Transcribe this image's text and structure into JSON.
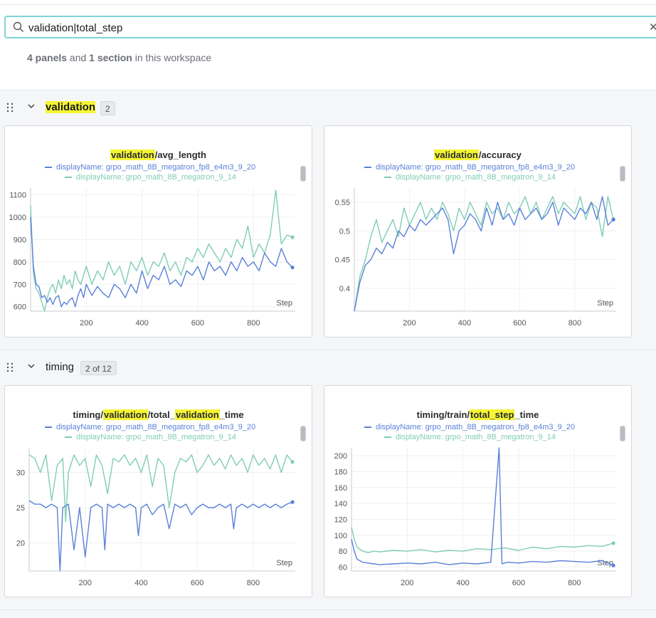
{
  "search": {
    "value": "validation|total_step",
    "clear_glyph": "✕",
    "icon": "search-icon"
  },
  "summary": {
    "panels_count": "4 panels",
    "and": " and ",
    "sections_count": "1 section",
    "suffix": " in this workspace"
  },
  "sections": [
    {
      "title_hl": "validation",
      "badge": "2"
    },
    {
      "title": "timing",
      "badge": "2 of 12"
    }
  ],
  "legend": {
    "series_a": "displayName: grpo_math_8B_megatron_fp8_e4m3_9_20",
    "series_b": "displayName: grpo_math_8B_megatron_9_14",
    "color_a": "#5a80d8",
    "color_b": "#7fcdb5"
  },
  "panels": [
    {
      "title_parts": [
        {
          "hl": true,
          "t": "validation"
        },
        {
          "hl": false,
          "t": "/avg_length"
        }
      ]
    },
    {
      "title_parts": [
        {
          "hl": true,
          "t": "validation"
        },
        {
          "hl": false,
          "t": "/accuracy"
        }
      ]
    },
    {
      "title_parts": [
        {
          "hl": false,
          "t": "timing/"
        },
        {
          "hl": true,
          "t": "validation"
        },
        {
          "hl": false,
          "t": "/total_"
        },
        {
          "hl": true,
          "t": "validation"
        },
        {
          "hl": false,
          "t": "_time"
        }
      ]
    },
    {
      "title_parts": [
        {
          "hl": false,
          "t": "timing/train/"
        },
        {
          "hl": true,
          "t": "total_step"
        },
        {
          "hl": false,
          "t": "_time"
        }
      ]
    }
  ],
  "chart_data": [
    {
      "type": "line",
      "title": "validation/avg_length",
      "xlabel": "Step",
      "xlim": [
        0,
        950
      ],
      "ylim": [
        580,
        1130
      ],
      "xticks": [
        200,
        400,
        600,
        800
      ],
      "yticks": [
        600,
        700,
        800,
        900,
        1000,
        1100
      ],
      "series": [
        {
          "name": "displayName: grpo_math_8B_megatron_fp8_e4m3_9_20",
          "x": [
            0,
            10,
            20,
            30,
            40,
            50,
            60,
            70,
            80,
            90,
            100,
            110,
            120,
            130,
            140,
            150,
            160,
            170,
            180,
            190,
            200,
            220,
            240,
            260,
            280,
            300,
            320,
            340,
            360,
            380,
            400,
            420,
            440,
            460,
            480,
            500,
            520,
            540,
            560,
            580,
            600,
            620,
            640,
            660,
            680,
            700,
            720,
            740,
            760,
            780,
            800,
            820,
            840,
            860,
            880,
            900,
            920,
            940
          ],
          "values": [
            1000,
            780,
            700,
            690,
            640,
            650,
            620,
            640,
            610,
            640,
            650,
            600,
            620,
            610,
            630,
            640,
            600,
            650,
            680,
            640,
            700,
            650,
            690,
            660,
            640,
            700,
            680,
            640,
            700,
            660,
            760,
            680,
            740,
            720,
            780,
            700,
            720,
            690,
            760,
            740,
            780,
            720,
            800,
            760,
            780,
            740,
            800,
            760,
            820,
            780,
            800,
            760,
            840,
            800,
            780,
            860,
            800,
            775
          ]
        },
        {
          "name": "displayName: grpo_math_8B_megatron_9_14",
          "x": [
            0,
            10,
            20,
            30,
            40,
            50,
            60,
            70,
            80,
            90,
            100,
            110,
            120,
            130,
            140,
            150,
            160,
            170,
            180,
            190,
            200,
            220,
            240,
            260,
            280,
            300,
            320,
            340,
            360,
            380,
            400,
            420,
            440,
            460,
            480,
            500,
            520,
            540,
            560,
            580,
            600,
            620,
            640,
            660,
            680,
            700,
            720,
            740,
            760,
            780,
            800,
            820,
            840,
            860,
            880,
            900,
            920,
            940
          ],
          "values": [
            1050,
            750,
            680,
            660,
            620,
            580,
            640,
            680,
            700,
            660,
            720,
            680,
            740,
            700,
            720,
            680,
            760,
            720,
            700,
            740,
            780,
            700,
            760,
            720,
            800,
            740,
            780,
            700,
            800,
            760,
            820,
            740,
            800,
            780,
            840,
            760,
            800,
            740,
            820,
            800,
            860,
            820,
            880,
            840,
            800,
            860,
            820,
            900,
            860,
            960,
            820,
            880,
            840,
            920,
            1120,
            880,
            920,
            910
          ]
        }
      ]
    },
    {
      "type": "line",
      "title": "validation/accuracy",
      "xlabel": "Step",
      "xlim": [
        0,
        950
      ],
      "ylim": [
        0.36,
        0.575
      ],
      "xticks": [
        200,
        400,
        600,
        800
      ],
      "yticks": [
        0.4,
        0.45,
        0.5,
        0.55
      ],
      "ytick_labels": [
        "0.4",
        "0.45",
        "0.5",
        "0.55"
      ],
      "series": [
        {
          "name": "displayName: grpo_math_8B_megatron_fp8_e4m3_9_20",
          "x": [
            0,
            20,
            40,
            60,
            80,
            100,
            120,
            140,
            160,
            180,
            200,
            220,
            240,
            260,
            280,
            300,
            320,
            340,
            360,
            380,
            400,
            420,
            440,
            460,
            480,
            500,
            520,
            540,
            560,
            580,
            600,
            620,
            640,
            660,
            680,
            700,
            720,
            740,
            760,
            780,
            800,
            820,
            840,
            860,
            880,
            900,
            920,
            940
          ],
          "values": [
            0.36,
            0.41,
            0.44,
            0.45,
            0.47,
            0.46,
            0.48,
            0.47,
            0.5,
            0.49,
            0.51,
            0.5,
            0.52,
            0.51,
            0.52,
            0.53,
            0.54,
            0.52,
            0.46,
            0.5,
            0.51,
            0.53,
            0.52,
            0.5,
            0.54,
            0.51,
            0.55,
            0.52,
            0.53,
            0.51,
            0.54,
            0.52,
            0.53,
            0.54,
            0.52,
            0.53,
            0.55,
            0.51,
            0.54,
            0.53,
            0.52,
            0.54,
            0.53,
            0.55,
            0.52,
            0.56,
            0.51,
            0.52
          ]
        },
        {
          "name": "displayName: grpo_math_8B_megatron_9_14",
          "x": [
            0,
            20,
            40,
            60,
            80,
            100,
            120,
            140,
            160,
            180,
            200,
            220,
            240,
            260,
            280,
            300,
            320,
            340,
            360,
            380,
            400,
            420,
            440,
            460,
            480,
            500,
            520,
            540,
            560,
            580,
            600,
            620,
            640,
            660,
            680,
            700,
            720,
            740,
            760,
            780,
            800,
            820,
            840,
            860,
            880,
            900,
            920,
            940
          ],
          "values": [
            0.36,
            0.42,
            0.45,
            0.49,
            0.52,
            0.48,
            0.5,
            0.52,
            0.49,
            0.54,
            0.51,
            0.53,
            0.55,
            0.52,
            0.54,
            0.52,
            0.55,
            0.53,
            0.5,
            0.54,
            0.52,
            0.55,
            0.53,
            0.51,
            0.55,
            0.53,
            0.54,
            0.52,
            0.55,
            0.53,
            0.54,
            0.56,
            0.53,
            0.55,
            0.52,
            0.54,
            0.56,
            0.53,
            0.55,
            0.54,
            0.53,
            0.56,
            0.52,
            0.55,
            0.54,
            0.49,
            0.56,
            0.52
          ]
        }
      ]
    },
    {
      "type": "line",
      "title": "timing/validation/total_validation_time",
      "xlabel": "Step",
      "xlim": [
        0,
        950
      ],
      "ylim": [
        16,
        33.5
      ],
      "xticks": [
        200,
        400,
        600,
        800
      ],
      "yticks": [
        20,
        25,
        30
      ],
      "series": [
        {
          "name": "displayName: grpo_math_8B_megatron_fp8_e4m3_9_20",
          "x": [
            0,
            20,
            40,
            60,
            80,
            100,
            110,
            120,
            140,
            160,
            180,
            200,
            220,
            240,
            260,
            270,
            280,
            300,
            320,
            340,
            360,
            380,
            390,
            400,
            420,
            440,
            460,
            480,
            500,
            520,
            540,
            560,
            580,
            600,
            620,
            640,
            660,
            680,
            700,
            720,
            730,
            740,
            760,
            780,
            800,
            820,
            840,
            860,
            880,
            900,
            920,
            940
          ],
          "values": [
            26,
            25.5,
            25.5,
            25,
            25.5,
            25,
            16,
            25,
            25.5,
            19,
            25,
            18,
            25,
            25.5,
            25,
            19,
            25.5,
            25,
            25.5,
            25,
            25.5,
            25,
            21,
            25,
            25.5,
            24,
            25,
            25.5,
            22,
            25.5,
            25,
            25.5,
            24,
            25,
            25.5,
            25,
            25,
            25.5,
            25,
            25.5,
            22,
            25,
            25.5,
            25,
            25.5,
            25,
            25.5,
            25,
            25.5,
            25,
            25.5,
            25.8
          ]
        },
        {
          "name": "displayName: grpo_math_8B_megatron_9_14",
          "x": [
            0,
            20,
            40,
            60,
            80,
            100,
            120,
            130,
            140,
            160,
            180,
            200,
            220,
            240,
            260,
            280,
            300,
            320,
            340,
            360,
            380,
            400,
            420,
            440,
            460,
            480,
            500,
            520,
            540,
            560,
            580,
            600,
            620,
            640,
            660,
            680,
            700,
            720,
            740,
            760,
            780,
            800,
            820,
            840,
            860,
            880,
            900,
            920,
            940
          ],
          "values": [
            32.5,
            32,
            30,
            32.5,
            26,
            31,
            32,
            23,
            30,
            32.5,
            31,
            32,
            28,
            32.5,
            31,
            27,
            32,
            31.5,
            32.5,
            31,
            32,
            30,
            32.5,
            28,
            32,
            31,
            25,
            30,
            32,
            31.5,
            32.5,
            30,
            31,
            32.5,
            31,
            32,
            30.5,
            32.5,
            31,
            32,
            30,
            32.5,
            31,
            32,
            30.5,
            32.5,
            30,
            32.5,
            31.5
          ]
        }
      ]
    },
    {
      "type": "line",
      "title": "timing/train/total_step_time",
      "xlabel": "Step",
      "xlim": [
        0,
        950
      ],
      "ylim": [
        55,
        210
      ],
      "xticks": [
        200,
        400,
        600,
        800
      ],
      "yticks": [
        60,
        80,
        100,
        120,
        140,
        160,
        180,
        200
      ],
      "series": [
        {
          "name": "displayName: grpo_math_8B_megatron_fp8_e4m3_9_20",
          "x": [
            0,
            10,
            20,
            40,
            60,
            80,
            100,
            150,
            200,
            250,
            300,
            350,
            400,
            450,
            500,
            530,
            540,
            560,
            600,
            650,
            700,
            750,
            800,
            850,
            900,
            940
          ],
          "values": [
            95,
            80,
            70,
            66,
            65,
            64,
            63,
            64,
            65,
            64,
            66,
            63,
            65,
            64,
            66,
            210,
            64,
            66,
            65,
            67,
            66,
            68,
            67,
            66,
            68,
            62
          ]
        },
        {
          "name": "displayName: grpo_math_8B_megatron_9_14",
          "x": [
            0,
            10,
            20,
            40,
            60,
            80,
            100,
            150,
            200,
            250,
            300,
            350,
            400,
            450,
            500,
            550,
            600,
            650,
            700,
            750,
            800,
            850,
            900,
            940
          ],
          "values": [
            110,
            95,
            85,
            80,
            78,
            80,
            79,
            81,
            80,
            82,
            79,
            81,
            80,
            83,
            82,
            84,
            81,
            85,
            83,
            86,
            85,
            87,
            86,
            90
          ]
        }
      ]
    }
  ]
}
